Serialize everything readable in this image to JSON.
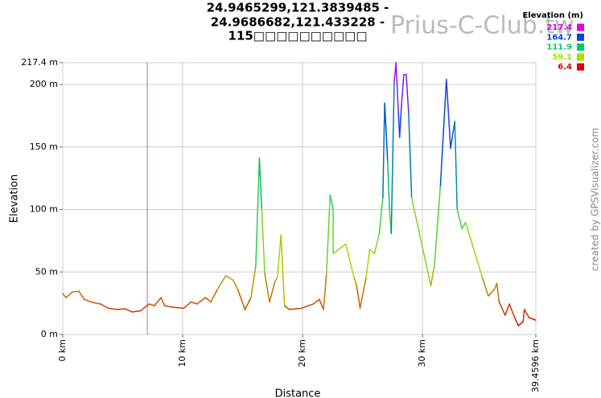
{
  "chart_data": {
    "type": "line",
    "title_lines": [
      "24.9465299,121.3839485 -",
      "24.9686682,121.433228 -",
      "115□□□□□□□□□□"
    ],
    "watermark": "Prius-C-Club.tw",
    "credit": "created by GPSVisualizer.com",
    "xlabel": "Distance",
    "ylabel": "Elevation",
    "xlim": [
      0,
      39.4596
    ],
    "ylim": [
      0,
      217.4
    ],
    "xticks": [
      {
        "value": 0,
        "label": "0 km"
      },
      {
        "value": 10,
        "label": "10 km"
      },
      {
        "value": 20,
        "label": "20 km"
      },
      {
        "value": 30,
        "label": "30 km"
      },
      {
        "value": 39.4596,
        "label": "39.4596 km"
      }
    ],
    "yticks": [
      {
        "value": 0,
        "label": "0 m"
      },
      {
        "value": 50,
        "label": "50 m"
      },
      {
        "value": 100,
        "label": "100 m"
      },
      {
        "value": 150,
        "label": "150 m"
      },
      {
        "value": 200,
        "label": "200 m"
      },
      {
        "value": 217.4,
        "label": "217.4 m"
      }
    ],
    "grid": true,
    "marker_x": 7.05,
    "marker_color": "#cc6699",
    "legend": {
      "title": "Elevation (m)",
      "values": [
        217.4,
        164.7,
        111.9,
        59.1,
        6.4
      ],
      "colors": [
        "#dd00dd",
        "#0044dd",
        "#00cc66",
        "#aadd00",
        "#dd0000"
      ]
    },
    "x": [
      0,
      0.27,
      0.8,
      1.34,
      1.8,
      2.5,
      3.15,
      3.8,
      4.5,
      5.2,
      5.8,
      6.5,
      7.2,
      7.65,
      8.2,
      8.5,
      9.2,
      10.1,
      10.7,
      11.2,
      11.9,
      12.35,
      12.9,
      13.6,
      14.2,
      14.6,
      15.2,
      15.7,
      16.1,
      16.4,
      16.6,
      16.85,
      17.25,
      17.7,
      17.9,
      18.2,
      18.5,
      18.9,
      19.9,
      20.9,
      21.4,
      21.75,
      22,
      22.3,
      22.55,
      22.56,
      23.6,
      24.3,
      24.5,
      24.8,
      25.3,
      25.6,
      26,
      26.4,
      26.7,
      26.85,
      27.1,
      27.25,
      27.4,
      27.65,
      27.8,
      28,
      28.1,
      28.25,
      28.45,
      28.65,
      28.85,
      29.1,
      30.7,
      31,
      31.5,
      32,
      32.35,
      32.7,
      32.9,
      33.3,
      33.6,
      35,
      35.5,
      36,
      36.2,
      36.4,
      36.9,
      37.25,
      37.7,
      38,
      38.4,
      38.5,
      38.9,
      39.45
    ],
    "y": [
      32.7,
      29.5,
      34,
      34.6,
      28,
      25.6,
      24.4,
      21,
      20,
      20.5,
      18,
      19,
      24.4,
      23,
      29.5,
      23,
      21.8,
      21,
      26,
      24.4,
      29.5,
      26,
      36,
      47,
      43.6,
      36,
      20,
      29.5,
      55,
      141,
      100,
      48.7,
      26,
      42.3,
      45.5,
      79.5,
      23,
      20,
      21,
      24.4,
      28,
      20,
      48.7,
      111.5,
      100,
      64.7,
      72.4,
      45.5,
      39.7,
      21,
      45.5,
      68,
      64.7,
      80.8,
      109.6,
      185,
      138.5,
      100,
      80.8,
      202.6,
      217.4,
      177,
      157.7,
      183,
      208,
      208,
      177,
      109.6,
      39,
      55,
      119,
      204,
      149,
      170.5,
      100,
      84.6,
      89.7,
      45.5,
      30.8,
      36,
      41,
      26,
      15.4,
      24.4,
      13.5,
      7,
      10.3,
      20,
      13.5,
      11.5
    ]
  }
}
